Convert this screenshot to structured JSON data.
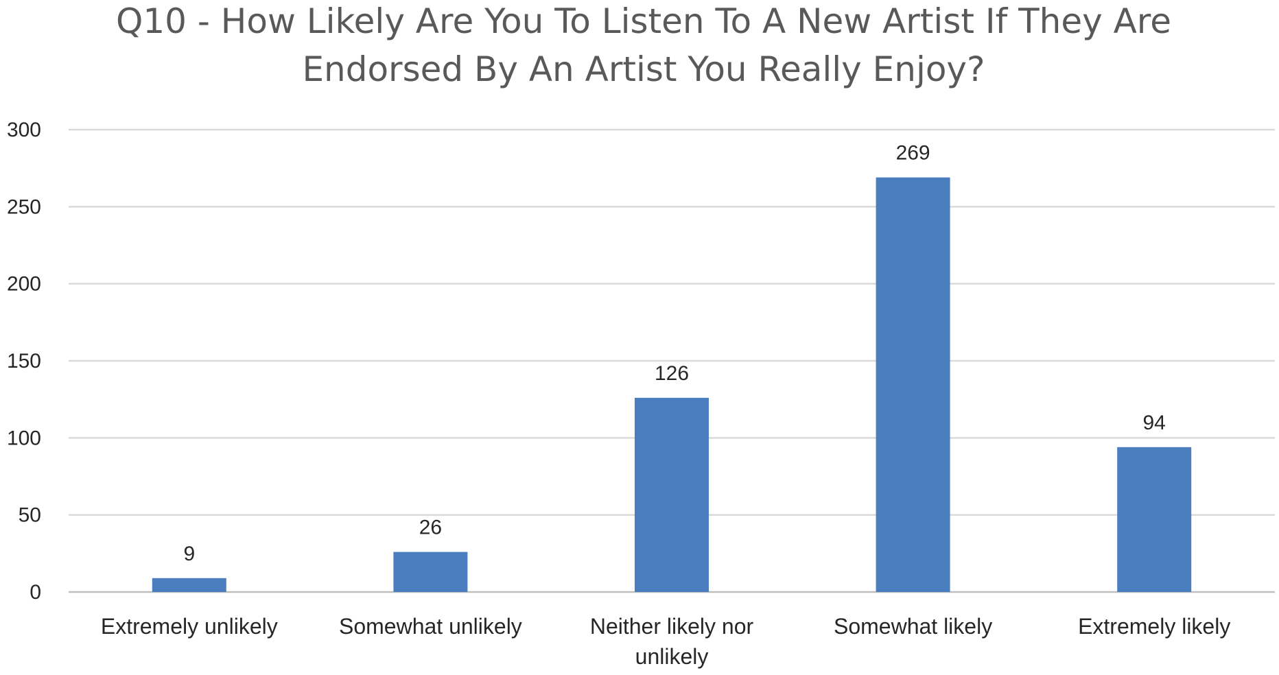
{
  "chart_data": {
    "type": "bar",
    "title_lines": [
      "Q10 - How Likely Are You To Listen To A New Artist If They Are",
      "Endorsed By An Artist You Really Enjoy?"
    ],
    "categories": [
      [
        "Extremely unlikely"
      ],
      [
        "Somewhat unlikely"
      ],
      [
        "Neither likely nor",
        "unlikely"
      ],
      [
        "Somewhat likely"
      ],
      [
        "Extremely likely"
      ]
    ],
    "values": [
      9,
      26,
      126,
      269,
      94
    ],
    "data_labels": [
      "9",
      "26",
      "126",
      "269",
      "94"
    ],
    "ylim": [
      0,
      300
    ],
    "y_ticks": [
      0,
      50,
      100,
      150,
      200,
      250,
      300
    ],
    "xlabel": "",
    "ylabel": "",
    "grid": true,
    "legend": "none",
    "bar_color": "#4a7ebf"
  }
}
